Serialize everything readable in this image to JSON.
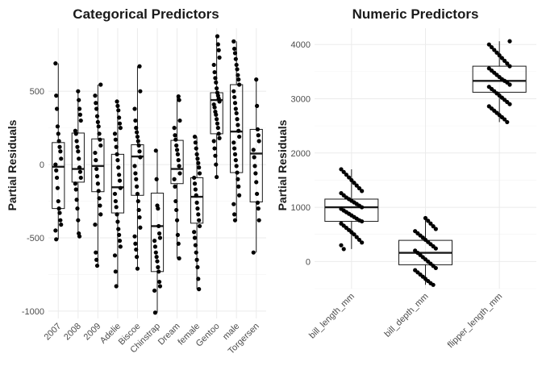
{
  "colors": {
    "point": "#000000",
    "box": "#1a1a1a",
    "grid": "#ebebeb"
  },
  "chart_data": [
    {
      "type": "box",
      "title": "Categorical Predictors",
      "xlabel": "",
      "ylabel": "Partial Residuals",
      "ylim": [
        -1050,
        930
      ],
      "yticks": [
        -1000,
        -500,
        0,
        500
      ],
      "ytick_labels": [
        "-1000",
        "-500",
        "0",
        "500"
      ],
      "grid": true,
      "categories": [
        "2007",
        "2008",
        "2009",
        "Adelie",
        "Biscoe",
        "Chinstrap",
        "Dream",
        "female",
        "Gentoo",
        "male",
        "Torgersen"
      ],
      "boxes": [
        {
          "q1": -300,
          "median": -15,
          "q3": 150,
          "whisker_low": -510,
          "whisker_high": 690
        },
        {
          "q1": -120,
          "median": -30,
          "q3": 215,
          "whisker_low": -490,
          "whisker_high": 500
        },
        {
          "q1": -185,
          "median": -10,
          "q3": 175,
          "whisker_low": -690,
          "whisker_high": 545
        },
        {
          "q1": -330,
          "median": -155,
          "q3": 70,
          "whisker_low": -830,
          "whisker_high": 430
        },
        {
          "q1": -210,
          "median": 55,
          "q3": 135,
          "whisker_low": -710,
          "whisker_high": 670
        },
        {
          "q1": -730,
          "median": -420,
          "q3": -195,
          "whisker_low": -1010,
          "whisker_high": 95
        },
        {
          "q1": -130,
          "median": -30,
          "q3": 165,
          "whisker_low": -640,
          "whisker_high": 465
        },
        {
          "q1": -400,
          "median": -220,
          "q3": -90,
          "whisker_low": -850,
          "whisker_high": 190
        },
        {
          "q1": 210,
          "median": 440,
          "q3": 490,
          "whisker_low": -85,
          "whisker_high": 875
        },
        {
          "q1": -55,
          "median": 225,
          "q3": 545,
          "whisker_low": -380,
          "whisker_high": 840
        },
        {
          "q1": -255,
          "median": 75,
          "q3": 240,
          "whisker_low": -600,
          "whisker_high": 580
        }
      ],
      "points": [
        [
          690,
          470,
          380,
          260,
          210,
          160,
          120,
          90,
          40,
          0,
          -40,
          -90,
          -160,
          -250,
          -300,
          -330,
          -380,
          -410,
          -450,
          -510
        ],
        [
          500,
          440,
          380,
          340,
          300,
          230,
          210,
          160,
          120,
          90,
          40,
          -20,
          -50,
          -90,
          -130,
          -170,
          -240,
          -300,
          -380,
          -470,
          -490
        ],
        [
          545,
          470,
          420,
          380,
          330,
          290,
          260,
          210,
          170,
          130,
          80,
          30,
          -30,
          -80,
          -130,
          -180,
          -230,
          -280,
          -340,
          -410,
          -600,
          -650,
          -690
        ],
        [
          430,
          400,
          370,
          320,
          280,
          250,
          210,
          170,
          120,
          70,
          30,
          -20,
          -70,
          -110,
          -160,
          -200,
          -250,
          -290,
          -340,
          -390,
          -440,
          -480,
          -520,
          -560,
          -620,
          -730,
          -830
        ],
        [
          670,
          500,
          380,
          300,
          250,
          220,
          190,
          160,
          130,
          90,
          50,
          -10,
          -60,
          -100,
          -150,
          -200,
          -250,
          -310,
          -360,
          -430,
          -490,
          -540,
          -580,
          -630,
          -710
        ],
        [
          95,
          -100,
          -280,
          -300,
          -420,
          -470,
          -500,
          -520,
          -560,
          -600,
          -630,
          -660,
          -700,
          -730,
          -800,
          -830,
          -860,
          -1010
        ],
        [
          465,
          440,
          300,
          250,
          200,
          170,
          130,
          100,
          70,
          30,
          -10,
          -60,
          -100,
          -150,
          -250,
          -310,
          -380,
          -480,
          -540,
          -640
        ],
        [
          190,
          150,
          110,
          70,
          40,
          10,
          -20,
          -60,
          -90,
          -130,
          -170,
          -210,
          -260,
          -300,
          -340,
          -380,
          -420,
          -460,
          -500,
          -550,
          -600,
          -650,
          -700,
          -780,
          -850
        ],
        [
          875,
          820,
          780,
          730,
          680,
          630,
          590,
          560,
          520,
          490,
          470,
          450,
          430,
          410,
          390,
          360,
          340,
          310,
          280,
          250,
          210,
          180,
          160,
          110,
          60,
          0,
          -85
        ],
        [
          840,
          790,
          760,
          720,
          680,
          650,
          610,
          580,
          545,
          500,
          460,
          420,
          380,
          350,
          310,
          270,
          230,
          190,
          150,
          110,
          70,
          30,
          -10,
          -55,
          -100,
          -150,
          -210,
          -270,
          -340,
          -380
        ],
        [
          580,
          400,
          240,
          200,
          160,
          100,
          50,
          -10,
          -60,
          -120,
          -200,
          -260,
          -300,
          -380,
          -600
        ]
      ]
    },
    {
      "type": "box",
      "title": "Numeric Predictors",
      "xlabel": "",
      "ylabel": "Partial Residuals",
      "ylim": [
        -500,
        4300
      ],
      "yticks": [
        0,
        1000,
        2000,
        3000,
        4000
      ],
      "ytick_labels": [
        "0",
        "1000",
        "2000",
        "3000",
        "4000"
      ],
      "grid": true,
      "categories": [
        "bill_length_mm",
        "bill_depth_mm",
        "flipper_length_mm"
      ],
      "boxes": [
        {
          "q1": 740,
          "median": 1000,
          "q3": 1150,
          "whisker_low": 230,
          "whisker_high": 1700
        },
        {
          "q1": -60,
          "median": 160,
          "q3": 390,
          "whisker_low": -430,
          "whisker_high": 800
        },
        {
          "q1": 3120,
          "median": 3330,
          "q3": 3600,
          "whisker_low": 2570,
          "whisker_high": 4060
        }
      ],
      "points": [
        [
          1700,
          1650,
          1600,
          1550,
          1500,
          1450,
          1400,
          1350,
          1300,
          1260,
          1220,
          1180,
          1150,
          1120,
          1090,
          1060,
          1030,
          1000,
          970,
          940,
          910,
          880,
          850,
          820,
          790,
          760,
          740,
          700,
          660,
          620,
          580,
          540,
          500,
          450,
          400,
          350,
          300,
          230
        ],
        [
          800,
          750,
          700,
          650,
          600,
          560,
          520,
          480,
          440,
          400,
          360,
          320,
          280,
          240,
          200,
          160,
          120,
          80,
          40,
          0,
          -40,
          -80,
          -120,
          -160,
          -200,
          -240,
          -280,
          -320,
          -360,
          -400,
          -430
        ],
        [
          4060,
          4000,
          3950,
          3900,
          3850,
          3800,
          3750,
          3700,
          3650,
          3600,
          3560,
          3520,
          3480,
          3440,
          3400,
          3360,
          3330,
          3300,
          3260,
          3220,
          3180,
          3140,
          3100,
          3060,
          3020,
          2980,
          2940,
          2900,
          2860,
          2820,
          2780,
          2740,
          2700,
          2660,
          2620,
          2570
        ]
      ]
    }
  ]
}
